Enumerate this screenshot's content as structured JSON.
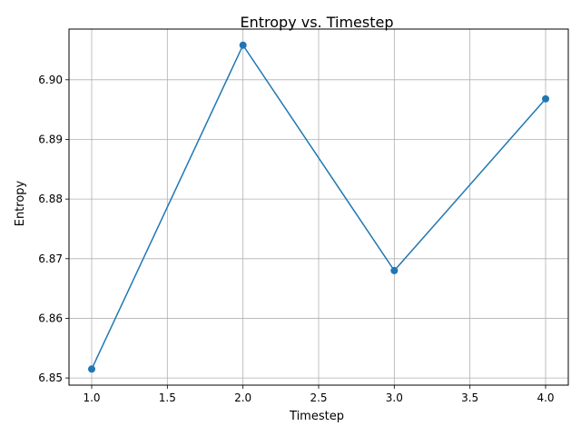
{
  "chart_data": {
    "type": "line",
    "title": "Entropy vs. Timestep",
    "xlabel": "Timestep",
    "ylabel": "Entropy",
    "x": [
      1.0,
      2.0,
      3.0,
      4.0
    ],
    "series": [
      {
        "values": [
          6.8515,
          6.9058,
          6.868,
          6.8968
        ],
        "color": "#1f77b4",
        "marker": "circle"
      }
    ],
    "xlim": [
      0.85,
      4.15
    ],
    "ylim": [
      6.8488,
      6.9085
    ],
    "xticks": [
      1.0,
      1.5,
      2.0,
      2.5,
      3.0,
      3.5,
      4.0
    ],
    "xtick_labels": [
      "1.0",
      "1.5",
      "2.0",
      "2.5",
      "3.0",
      "3.5",
      "4.0"
    ],
    "yticks": [
      6.85,
      6.86,
      6.87,
      6.88,
      6.89,
      6.9
    ],
    "ytick_labels": [
      "6.85",
      "6.86",
      "6.87",
      "6.88",
      "6.89",
      "6.90"
    ],
    "grid": true
  }
}
